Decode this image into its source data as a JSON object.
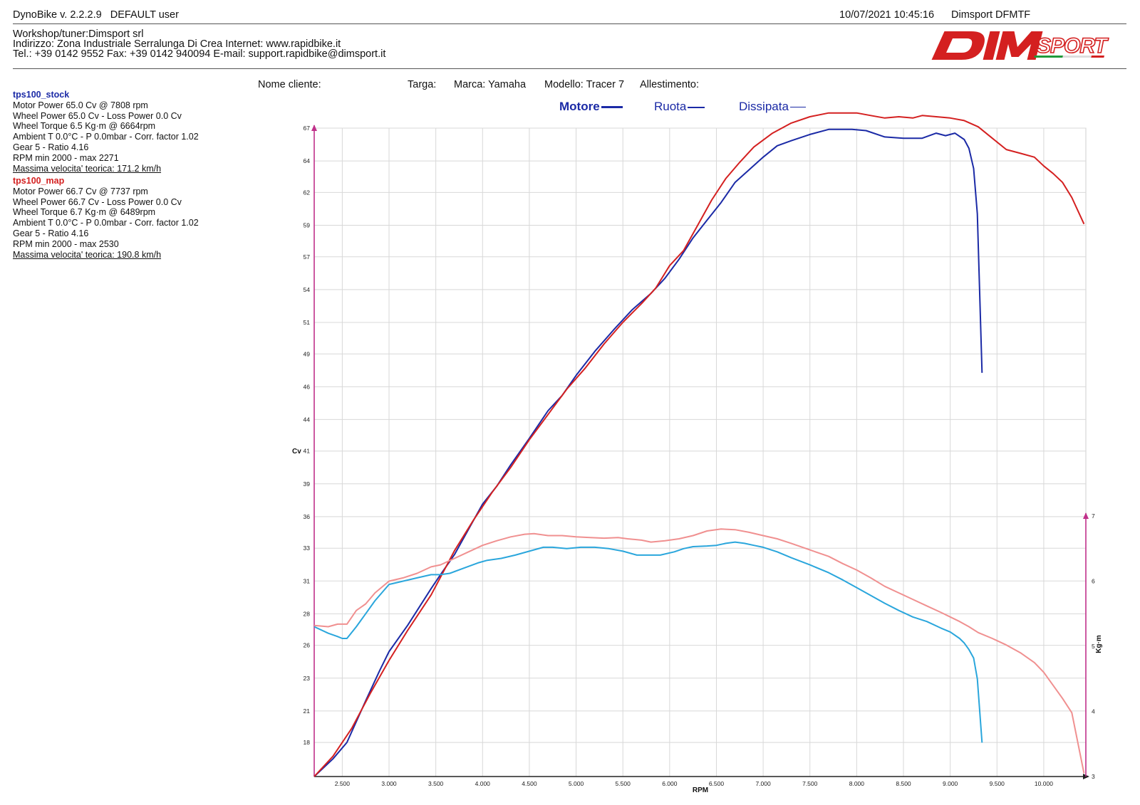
{
  "header": {
    "app": "DynoBike v. 2.2.2.9",
    "user": "DEFAULT user",
    "datetime": "10/07/2021 10:45:16",
    "device": "Dimsport DFMTF"
  },
  "workshop": {
    "line1": "Workshop/tuner:Dimsport srl",
    "line2": "Indirizzo: Zona Industriale Serralunga Di Crea Internet: www.rapidbike.it",
    "line3": "Tel.: +39 0142 9552 Fax: +39 0142 940094 E-mail: support.rapidbike@dimsport.it"
  },
  "logo_text": "DIMSPORT",
  "tests": [
    {
      "name": "tps100_stock",
      "color": "#1b2aa6",
      "lines": [
        "Motor Power 65.0 Cv  @ 7808 rpm",
        "Wheel Power 65.0 Cv  - Loss Power 0.0 Cv",
        "Wheel Torque 6.5 Kg·m  @ 6664rpm",
        "Ambient T 0.0°C - P 0.0mbar - Corr. factor 1.02",
        "Gear 5 - Ratio 4.16",
        "RPM min 2000 - max 2271"
      ],
      "vmax": "Massima velocita' teorica: 171.2 km/h"
    },
    {
      "name": "tps100_map",
      "color": "#d42020",
      "lines": [
        "Motor Power 66.7 Cv  @ 7737 rpm",
        "Wheel Power 66.7 Cv  - Loss Power 0.0 Cv",
        "Wheel Torque 6.7 Kg·m  @ 6489rpm",
        "Ambient T 0.0°C - P 0.0mbar - Corr. factor 1.02",
        "Gear 5 - Ratio 4.16",
        "RPM min 2000 - max 2530"
      ],
      "vmax": "Massima velocita' teorica: 190.8 km/h"
    }
  ],
  "vehicle": {
    "nome_cliente": "Nome cliente:",
    "targa": "Targa:",
    "marca": "Marca: Yamaha",
    "modello": "Modello:  Tracer 7",
    "allestimento": "Allestimento:"
  },
  "legend": {
    "motore": "Motore",
    "ruota": "Ruota",
    "dissipata": "Dissipata"
  },
  "chart_data": {
    "type": "line",
    "xlabel": "RPM",
    "ylabel_left": "Cv",
    "ylabel_right": "Kg·m",
    "xlim": [
      2200,
      10450
    ],
    "ylim_left": [
      15.6,
      67
    ],
    "ylim_right": [
      3,
      7
    ],
    "x_ticks": [
      2500,
      3000,
      3500,
      4000,
      4500,
      5000,
      5500,
      6000,
      6500,
      7000,
      7500,
      8000,
      8500,
      9000,
      9500,
      10000
    ],
    "x_tick_labels": [
      "2.500",
      "3.000",
      "3.500",
      "4.000",
      "4.500",
      "5.000",
      "5.500",
      "6.000",
      "6.500",
      "7.000",
      "7.500",
      "8.000",
      "8.500",
      "9.000",
      "9.500",
      "10.000"
    ],
    "y_ticks_left": [
      "67",
      "64",
      "62",
      "59",
      "57",
      "54",
      "51",
      "49",
      "46",
      "44",
      "41",
      "39",
      "36",
      "33",
      "31",
      "28",
      "26",
      "23",
      "21",
      "18"
    ],
    "y_tick_left_values": [
      67.0,
      64.4,
      61.9,
      59.3,
      56.8,
      54.2,
      51.6,
      49.1,
      46.5,
      43.9,
      41.4,
      38.8,
      36.2,
      33.7,
      31.1,
      28.5,
      26.0,
      23.4,
      20.8,
      18.3
    ],
    "y_ticks_right": [
      "7",
      "6",
      "5",
      "4",
      "3"
    ],
    "y_tick_right_values": [
      7,
      6,
      5,
      4,
      3
    ],
    "grid": true,
    "series": [
      {
        "name": "tps100_stock - Motore",
        "axis": "left",
        "color": "#1b2aa6",
        "x": [
          2200,
          2400,
          2550,
          2750,
          2900,
          3000,
          3200,
          3450,
          3550,
          3700,
          3850,
          4000,
          4150,
          4300,
          4500,
          4700,
          4850,
          5000,
          5200,
          5400,
          5600,
          5800,
          5950,
          6100,
          6250,
          6400,
          6550,
          6700,
          6850,
          7000,
          7150,
          7300,
          7500,
          7700,
          7850,
          7950,
          8100,
          8300,
          8500,
          8600,
          8700,
          8850,
          8950,
          9050,
          9150,
          9200,
          9250,
          9290,
          9340
        ],
        "y": [
          15.6,
          17.0,
          18.3,
          21.6,
          24.0,
          25.5,
          27.6,
          30.5,
          31.6,
          33.2,
          35.2,
          37.2,
          38.6,
          40.3,
          42.4,
          44.6,
          45.8,
          47.4,
          49.3,
          51.0,
          52.6,
          53.9,
          55.1,
          56.6,
          58.3,
          59.7,
          61.1,
          62.7,
          63.7,
          64.7,
          65.6,
          66.0,
          66.5,
          66.9,
          66.9,
          66.9,
          66.8,
          66.3,
          66.2,
          66.2,
          66.2,
          66.6,
          66.4,
          66.6,
          66.1,
          65.4,
          63.8,
          60.2,
          47.6
        ]
      },
      {
        "name": "tps100_map - Motore",
        "axis": "left",
        "color": "#d42020",
        "x": [
          2200,
          2400,
          2600,
          2800,
          3000,
          3200,
          3450,
          3700,
          3900,
          4100,
          4300,
          4500,
          4700,
          4900,
          5100,
          5300,
          5500,
          5700,
          5850,
          6000,
          6150,
          6300,
          6450,
          6600,
          6750,
          6900,
          7100,
          7300,
          7500,
          7700,
          7850,
          8000,
          8150,
          8300,
          8450,
          8600,
          8700,
          8850,
          9000,
          9150,
          9300,
          9450,
          9600,
          9750,
          9900,
          10000,
          10100,
          10200,
          10300,
          10430
        ],
        "y": [
          15.6,
          17.2,
          19.4,
          22.2,
          24.8,
          27.2,
          30.0,
          33.5,
          35.9,
          38.1,
          40.1,
          42.3,
          44.3,
          46.3,
          48.0,
          49.9,
          51.6,
          53.1,
          54.3,
          56.1,
          57.3,
          59.3,
          61.3,
          63.0,
          64.3,
          65.5,
          66.6,
          67.4,
          67.9,
          68.2,
          68.2,
          68.2,
          68.0,
          67.8,
          67.9,
          67.8,
          68.0,
          67.9,
          67.8,
          67.6,
          67.1,
          66.2,
          65.3,
          65.0,
          64.7,
          64.0,
          63.4,
          62.7,
          61.5,
          59.4
        ]
      },
      {
        "name": "tps100_stock - Coppia",
        "axis": "right",
        "color": "#2aa6dc",
        "x": [
          2200,
          2350,
          2450,
          2500,
          2550,
          2650,
          2750,
          2850,
          3000,
          3150,
          3300,
          3450,
          3550,
          3650,
          3800,
          3950,
          4050,
          4200,
          4350,
          4500,
          4650,
          4750,
          4900,
          5050,
          5200,
          5350,
          5500,
          5650,
          5750,
          5900,
          6050,
          6150,
          6250,
          6400,
          6500,
          6600,
          6700,
          6800,
          6900,
          7000,
          7150,
          7300,
          7500,
          7700,
          7850,
          8000,
          8150,
          8300,
          8450,
          8600,
          8750,
          8900,
          9000,
          9100,
          9150,
          9200,
          9250,
          9290,
          9340
        ],
        "y": [
          5.3,
          5.2,
          5.15,
          5.12,
          5.12,
          5.3,
          5.5,
          5.7,
          5.95,
          6.0,
          6.05,
          6.1,
          6.1,
          6.12,
          6.2,
          6.28,
          6.32,
          6.35,
          6.4,
          6.46,
          6.52,
          6.52,
          6.5,
          6.52,
          6.52,
          6.5,
          6.46,
          6.4,
          6.4,
          6.4,
          6.45,
          6.5,
          6.53,
          6.54,
          6.55,
          6.58,
          6.6,
          6.58,
          6.55,
          6.52,
          6.45,
          6.36,
          6.25,
          6.13,
          6.02,
          5.9,
          5.78,
          5.66,
          5.55,
          5.45,
          5.38,
          5.28,
          5.22,
          5.12,
          5.05,
          4.95,
          4.82,
          4.5,
          3.52
        ]
      },
      {
        "name": "tps100_map - Coppia",
        "axis": "right",
        "color": "#f09090",
        "x": [
          2200,
          2350,
          2450,
          2550,
          2650,
          2750,
          2850,
          3000,
          3150,
          3300,
          3450,
          3550,
          3700,
          3850,
          4000,
          4150,
          4300,
          4450,
          4550,
          4700,
          4850,
          5000,
          5150,
          5300,
          5450,
          5550,
          5700,
          5800,
          5950,
          6100,
          6250,
          6400,
          6550,
          6700,
          6850,
          7000,
          7150,
          7300,
          7500,
          7700,
          7850,
          8000,
          8150,
          8300,
          8450,
          8600,
          8750,
          8900,
          9000,
          9100,
          9200,
          9300,
          9450,
          9600,
          9750,
          9900,
          10000,
          10100,
          10200,
          10300,
          10430
        ],
        "y": [
          5.32,
          5.3,
          5.34,
          5.34,
          5.55,
          5.65,
          5.82,
          6.0,
          6.05,
          6.12,
          6.22,
          6.25,
          6.35,
          6.45,
          6.55,
          6.62,
          6.68,
          6.72,
          6.73,
          6.7,
          6.7,
          6.68,
          6.67,
          6.66,
          6.67,
          6.65,
          6.63,
          6.6,
          6.62,
          6.65,
          6.7,
          6.77,
          6.8,
          6.79,
          6.75,
          6.7,
          6.65,
          6.58,
          6.48,
          6.38,
          6.27,
          6.17,
          6.05,
          5.92,
          5.82,
          5.72,
          5.62,
          5.52,
          5.45,
          5.38,
          5.3,
          5.21,
          5.12,
          5.02,
          4.9,
          4.75,
          4.6,
          4.4,
          4.2,
          3.98,
          3.05
        ]
      }
    ]
  }
}
